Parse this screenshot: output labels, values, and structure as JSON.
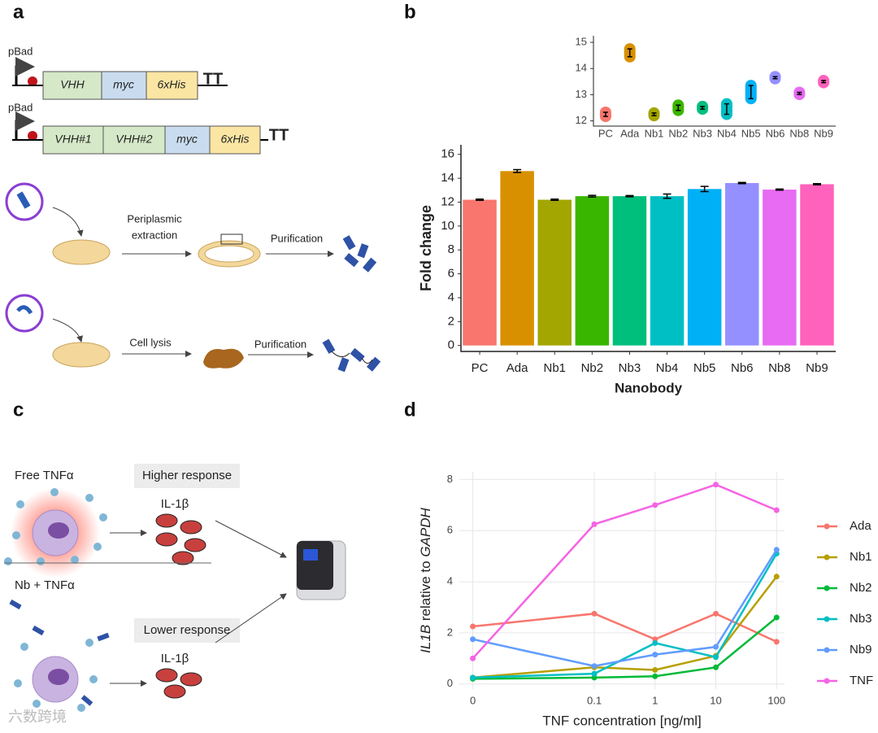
{
  "panels": [
    "a",
    "b",
    "c",
    "d"
  ],
  "diagram_a": {
    "construct_1": [
      "pBad",
      "VHH",
      "myc",
      "6xHis",
      "TT"
    ],
    "construct_2": [
      "pBad",
      "VHH#1",
      "VHH#2",
      "myc",
      "6xHis",
      "TT"
    ],
    "route_1": [
      "Periplasmic",
      "extraction",
      "Purification"
    ],
    "route_2": [
      "Cell lysis",
      "Purification"
    ]
  },
  "diagram_c": {
    "top": [
      "Free TNFα",
      "Higher response",
      "IL-1β"
    ],
    "bottom": [
      "Nb + TNFα",
      "Lower response",
      "IL-1β"
    ]
  },
  "watermark": "六数跨境",
  "chart_data": [
    {
      "type": "bar",
      "xlabel": "Nanobody",
      "ylabel": "Fold change",
      "categories": [
        "PC",
        "Ada",
        "Nb1",
        "Nb2",
        "Nb3",
        "Nb4",
        "Nb5",
        "Nb6",
        "Nb8",
        "Nb9"
      ],
      "values": [
        12.2,
        14.6,
        12.2,
        12.5,
        12.5,
        12.5,
        13.1,
        13.6,
        13.05,
        13.5
      ],
      "errors": [
        0.05,
        0.12,
        0.05,
        0.07,
        0.05,
        0.18,
        0.22,
        0.05,
        0.05,
        0.05
      ],
      "colors": [
        "#F8766D",
        "#D89000",
        "#A3A500",
        "#39B600",
        "#00BF7D",
        "#00BFC4",
        "#00B0F6",
        "#9590FF",
        "#E76BF3",
        "#FF62BC"
      ],
      "ylim": [
        -0.5,
        16.8
      ],
      "yticks": [
        0,
        2,
        4,
        6,
        8,
        10,
        12,
        14,
        16
      ]
    },
    {
      "type": "pointrange",
      "categories": [
        "PC",
        "Ada",
        "Nb1",
        "Nb2",
        "Nb3",
        "Nb4",
        "Nb5",
        "Nb6",
        "Nb8",
        "Nb9"
      ],
      "values": [
        12.25,
        14.6,
        12.25,
        12.5,
        12.5,
        12.45,
        13.1,
        13.65,
        13.05,
        13.5
      ],
      "errors": [
        0.08,
        0.15,
        0.05,
        0.1,
        0.05,
        0.2,
        0.25,
        0.04,
        0.04,
        0.04
      ],
      "colors": [
        "#F8766D",
        "#D89000",
        "#A3A500",
        "#39B600",
        "#00BF7D",
        "#00BFC4",
        "#00B0F6",
        "#9590FF",
        "#E76BF3",
        "#FF62BC"
      ],
      "ylim": [
        11.8,
        15.25
      ],
      "yticks": [
        12,
        13,
        14,
        15
      ]
    },
    {
      "type": "line",
      "xlabel": "TNF concentration [ng/ml]",
      "ylabel_parts": [
        "IL1B",
        " relative to ",
        "GAPDH"
      ],
      "x": [
        0.001,
        0.1,
        1,
        10,
        100
      ],
      "xlog": true,
      "xlim": [
        0.0006,
        135
      ],
      "xticks": [
        {
          "value": 0.001,
          "label": "0"
        },
        0.1,
        1,
        10,
        100
      ],
      "ylim": [
        -0.2,
        8.3
      ],
      "yticks": [
        0,
        2,
        4,
        6,
        8
      ],
      "grid": true,
      "legend": "right",
      "series": [
        {
          "name": "Ada",
          "color": "#F8766D",
          "values": [
            2.25,
            2.75,
            1.75,
            2.75,
            1.65
          ]
        },
        {
          "name": "Nb1",
          "color": "#B79F00",
          "values": [
            0.25,
            0.65,
            0.55,
            1.1,
            4.2
          ]
        },
        {
          "name": "Nb2",
          "color": "#00BA38",
          "values": [
            0.2,
            0.25,
            0.3,
            0.65,
            2.6
          ]
        },
        {
          "name": "Nb3",
          "color": "#00BFC4",
          "values": [
            0.25,
            0.4,
            1.6,
            1.05,
            5.1
          ]
        },
        {
          "name": "Nb9",
          "color": "#619CFF",
          "values": [
            1.75,
            0.7,
            1.15,
            1.45,
            5.25
          ]
        },
        {
          "name": "TNF",
          "color": "#F564E3",
          "values": [
            1.0,
            6.25,
            7.0,
            7.8,
            6.8
          ]
        }
      ]
    }
  ]
}
